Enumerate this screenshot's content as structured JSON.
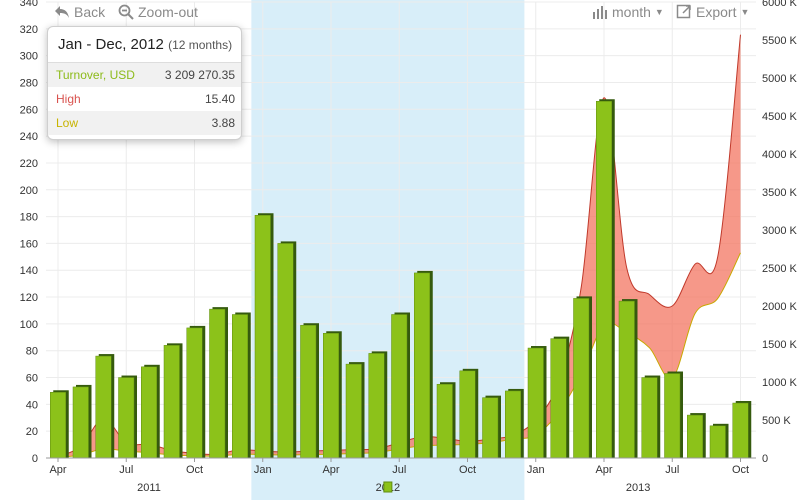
{
  "toolbar": {
    "back_label": "Back",
    "zoom_out_label": "Zoom-out",
    "period_label": "month",
    "export_label": "Export"
  },
  "tooltip": {
    "title": "Jan - Dec, 2012",
    "subtitle": "(12 months)",
    "rows": [
      {
        "label": "Turnover, USD",
        "value": "3 209 270.35",
        "color": "#8dbb1a"
      },
      {
        "label": "High",
        "value": "15.40",
        "color": "#d9534f"
      },
      {
        "label": "Low",
        "value": "3.88",
        "color": "#c8b400"
      }
    ]
  },
  "chart_data": {
    "type": "bar",
    "grid": true,
    "selected_range": [
      "Jan 2012",
      "Dec 2012"
    ],
    "categories": [
      "Apr 2011",
      "May 2011",
      "Jun 2011",
      "Jul 2011",
      "Aug 2011",
      "Sep 2011",
      "Oct 2011",
      "Nov 2011",
      "Dec 2011",
      "Jan 2012",
      "Feb 2012",
      "Mar 2012",
      "Apr 2012",
      "May 2012",
      "Jun 2012",
      "Jul 2012",
      "Aug 2012",
      "Sep 2012",
      "Oct 2012",
      "Nov 2012",
      "Dec 2012",
      "Jan 2013",
      "Feb 2013",
      "Mar 2013",
      "Apr 2013",
      "May 2013",
      "Jun 2013",
      "Jul 2013",
      "Aug 2013",
      "Sep 2013",
      "Oct 2013"
    ],
    "x_tick_labels": [
      "Apr",
      "Jul",
      "Oct",
      "Jan",
      "Apr",
      "Jul",
      "Oct",
      "Jan",
      "Apr",
      "Jul",
      "Oct"
    ],
    "x_tick_months": [
      0,
      3,
      6,
      9,
      12,
      15,
      18,
      21,
      24,
      27,
      30
    ],
    "year_labels": [
      {
        "label": "2011",
        "start": 0,
        "end": 8
      },
      {
        "label": "2012",
        "start": 9,
        "end": 20
      },
      {
        "label": "2013",
        "start": 21,
        "end": 30
      }
    ],
    "left_axis": {
      "min": 0,
      "max": 340,
      "ticks": [
        0,
        20,
        40,
        60,
        80,
        100,
        120,
        140,
        160,
        180,
        200,
        220,
        240,
        260,
        280,
        300,
        320,
        340
      ]
    },
    "right_axis": {
      "min": 0,
      "max": 6000,
      "ticks": [
        0,
        500,
        1000,
        1500,
        2000,
        2500,
        3000,
        3500,
        4000,
        4500,
        5000,
        5500,
        6000
      ],
      "tick_labels": [
        "0",
        "500 K",
        "1000 K",
        "1500 K",
        "2000 K",
        "2500 K",
        "3000 K",
        "3500 K",
        "4000 K",
        "4500 K",
        "5000 K",
        "5500 K",
        "6000 K"
      ]
    },
    "series": [
      {
        "name": "Turnover, USD",
        "type": "bar",
        "axis": "left",
        "color": "#8dbb1a",
        "values": [
          49,
          53,
          76,
          60,
          68,
          84,
          97,
          111,
          107,
          181,
          160,
          99,
          93,
          70,
          78,
          107,
          138,
          55,
          65,
          45,
          50,
          82,
          89,
          119,
          266,
          117,
          60,
          63,
          32,
          24,
          41
        ]
      },
      {
        "name": "High",
        "type": "area-upper",
        "axis": "right",
        "color": "#d9534f",
        "values": [
          20,
          150,
          520,
          200,
          180,
          100,
          60,
          50,
          110,
          90,
          80,
          90,
          100,
          110,
          120,
          200,
          280,
          260,
          220,
          250,
          300,
          500,
          1000,
          2250,
          4740,
          2500,
          2150,
          2000,
          2550,
          2650,
          5570
        ]
      },
      {
        "name": "Low",
        "type": "area-lower",
        "axis": "right",
        "color": "#c8b400",
        "values": [
          10,
          40,
          120,
          90,
          70,
          40,
          30,
          25,
          50,
          45,
          40,
          45,
          50,
          60,
          70,
          120,
          160,
          170,
          180,
          200,
          250,
          300,
          600,
          1100,
          1750,
          1650,
          1450,
          1050,
          1900,
          2100,
          2700
        ]
      }
    ]
  }
}
